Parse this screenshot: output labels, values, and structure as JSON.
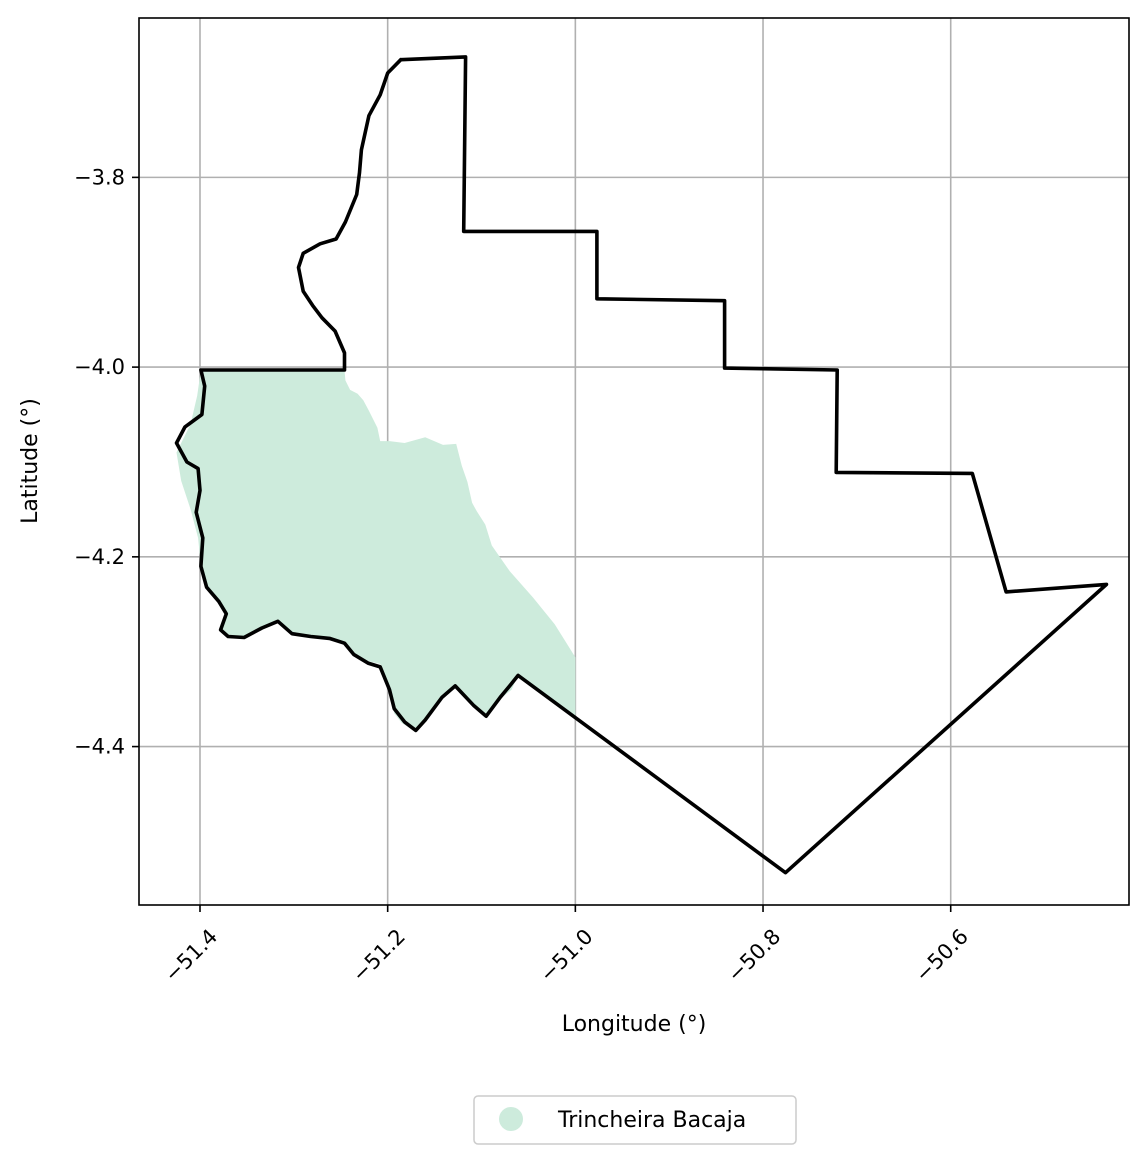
{
  "chart_data": {
    "type": "map",
    "xlabel": "Longitude (°)",
    "ylabel": "Latitude (°)",
    "xlim": [
      -51.465,
      -50.41
    ],
    "ylim": [
      -4.567,
      -3.632
    ],
    "grid": true,
    "x_ticks": [
      {
        "value": -51.4,
        "label": "−51.4"
      },
      {
        "value": -51.2,
        "label": "−51.2"
      },
      {
        "value": -51.0,
        "label": "−51.0"
      },
      {
        "value": -50.8,
        "label": "−50.8"
      },
      {
        "value": -50.6,
        "label": "−50.6"
      }
    ],
    "y_ticks": [
      {
        "value": -3.8,
        "label": "−3.8"
      },
      {
        "value": -4.0,
        "label": "−4.0"
      },
      {
        "value": -4.2,
        "label": "−4.2"
      },
      {
        "value": -4.4,
        "label": "−4.4"
      }
    ],
    "legend": {
      "placement": "bottom-center",
      "entries": [
        {
          "label": "Trincheira Bacaja",
          "color": "#cdebdc",
          "marker": "circle"
        }
      ]
    },
    "series": [
      {
        "name": "Trincheira Bacaja",
        "kind": "filled-area",
        "color": "#cdebdc",
        "lonlat": [
          [
            -51.399,
            -4.003
          ],
          [
            -51.246,
            -4.003
          ],
          [
            -51.245,
            -4.014
          ],
          [
            -51.24,
            -4.024
          ],
          [
            -51.232,
            -4.028
          ],
          [
            -51.226,
            -4.035
          ],
          [
            -51.22,
            -4.046
          ],
          [
            -51.211,
            -4.064
          ],
          [
            -51.208,
            -4.078
          ],
          [
            -51.198,
            -4.078
          ],
          [
            -51.182,
            -4.08
          ],
          [
            -51.16,
            -4.074
          ],
          [
            -51.141,
            -4.082
          ],
          [
            -51.127,
            -4.081
          ],
          [
            -51.121,
            -4.104
          ],
          [
            -51.115,
            -4.121
          ],
          [
            -51.11,
            -4.143
          ],
          [
            -51.105,
            -4.152
          ],
          [
            -51.096,
            -4.166
          ],
          [
            -51.089,
            -4.188
          ],
          [
            -51.07,
            -4.215
          ],
          [
            -51.045,
            -4.243
          ],
          [
            -51.022,
            -4.271
          ],
          [
            -51.0,
            -4.306
          ],
          [
            -51.0,
            -4.37
          ],
          [
            -51.061,
            -4.325
          ],
          [
            -51.068,
            -4.34
          ],
          [
            -51.08,
            -4.35
          ],
          [
            -51.095,
            -4.366
          ],
          [
            -51.11,
            -4.356
          ],
          [
            -51.13,
            -4.335
          ],
          [
            -51.14,
            -4.345
          ],
          [
            -51.158,
            -4.37
          ],
          [
            -51.17,
            -4.385
          ],
          [
            -51.185,
            -4.375
          ],
          [
            -51.193,
            -4.365
          ],
          [
            -51.2,
            -4.338
          ],
          [
            -51.208,
            -4.313
          ],
          [
            -51.22,
            -4.31
          ],
          [
            -51.235,
            -4.304
          ],
          [
            -51.245,
            -4.291
          ],
          [
            -51.26,
            -4.285
          ],
          [
            -51.285,
            -4.283
          ],
          [
            -51.305,
            -4.28
          ],
          [
            -51.318,
            -4.268
          ],
          [
            -51.335,
            -4.275
          ],
          [
            -51.355,
            -4.285
          ],
          [
            -51.37,
            -4.284
          ],
          [
            -51.378,
            -4.277
          ],
          [
            -51.373,
            -4.262
          ],
          [
            -51.38,
            -4.247
          ],
          [
            -51.395,
            -4.228
          ],
          [
            -51.4,
            -4.2
          ],
          [
            -51.402,
            -4.18
          ],
          [
            -51.41,
            -4.15
          ],
          [
            -51.42,
            -4.12
          ],
          [
            -51.425,
            -4.09
          ],
          [
            -51.41,
            -4.06
          ],
          [
            -51.403,
            -4.03
          ]
        ]
      },
      {
        "name": "",
        "kind": "outline",
        "color": "#000000",
        "lonlat": [
          [
            -51.186,
            -3.676
          ],
          [
            -51.117,
            -3.673
          ],
          [
            -51.119,
            -3.857
          ],
          [
            -50.977,
            -3.857
          ],
          [
            -50.977,
            -3.928
          ],
          [
            -50.841,
            -3.93
          ],
          [
            -50.841,
            -4.001
          ],
          [
            -50.721,
            -4.003
          ],
          [
            -50.722,
            -4.111
          ],
          [
            -50.577,
            -4.112
          ],
          [
            -50.541,
            -4.237
          ],
          [
            -50.434,
            -4.229
          ],
          [
            -50.776,
            -4.533
          ],
          [
            -51.061,
            -4.325
          ],
          [
            -51.07,
            -4.336
          ],
          [
            -51.08,
            -4.348
          ],
          [
            -51.095,
            -4.368
          ],
          [
            -51.108,
            -4.357
          ],
          [
            -51.128,
            -4.336
          ],
          [
            -51.142,
            -4.348
          ],
          [
            -51.16,
            -4.372
          ],
          [
            -51.17,
            -4.383
          ],
          [
            -51.182,
            -4.374
          ],
          [
            -51.193,
            -4.36
          ],
          [
            -51.198,
            -4.34
          ],
          [
            -51.208,
            -4.316
          ],
          [
            -51.221,
            -4.312
          ],
          [
            -51.236,
            -4.303
          ],
          [
            -51.246,
            -4.291
          ],
          [
            -51.262,
            -4.286
          ],
          [
            -51.282,
            -4.284
          ],
          [
            -51.302,
            -4.281
          ],
          [
            -51.317,
            -4.268
          ],
          [
            -51.334,
            -4.275
          ],
          [
            -51.353,
            -4.285
          ],
          [
            -51.37,
            -4.284
          ],
          [
            -51.378,
            -4.277
          ],
          [
            -51.372,
            -4.26
          ],
          [
            -51.38,
            -4.247
          ],
          [
            -51.393,
            -4.232
          ],
          [
            -51.399,
            -4.21
          ],
          [
            -51.397,
            -4.18
          ],
          [
            -51.404,
            -4.153
          ],
          [
            -51.4,
            -4.13
          ],
          [
            -51.402,
            -4.107
          ],
          [
            -51.414,
            -4.1
          ],
          [
            -51.425,
            -4.08
          ],
          [
            -51.416,
            -4.063
          ],
          [
            -51.398,
            -4.05
          ],
          [
            -51.395,
            -4.02
          ],
          [
            -51.399,
            -4.003
          ],
          [
            -51.246,
            -4.003
          ],
          [
            -51.246,
            -3.985
          ],
          [
            -51.256,
            -3.962
          ],
          [
            -51.27,
            -3.948
          ],
          [
            -51.28,
            -3.935
          ],
          [
            -51.29,
            -3.92
          ],
          [
            -51.295,
            -3.895
          ],
          [
            -51.29,
            -3.88
          ],
          [
            -51.272,
            -3.87
          ],
          [
            -51.255,
            -3.865
          ],
          [
            -51.245,
            -3.847
          ],
          [
            -51.233,
            -3.818
          ],
          [
            -51.23,
            -3.795
          ],
          [
            -51.228,
            -3.771
          ],
          [
            -51.22,
            -3.735
          ],
          [
            -51.208,
            -3.713
          ],
          [
            -51.2,
            -3.69
          ],
          [
            -51.186,
            -3.676
          ]
        ]
      }
    ]
  }
}
